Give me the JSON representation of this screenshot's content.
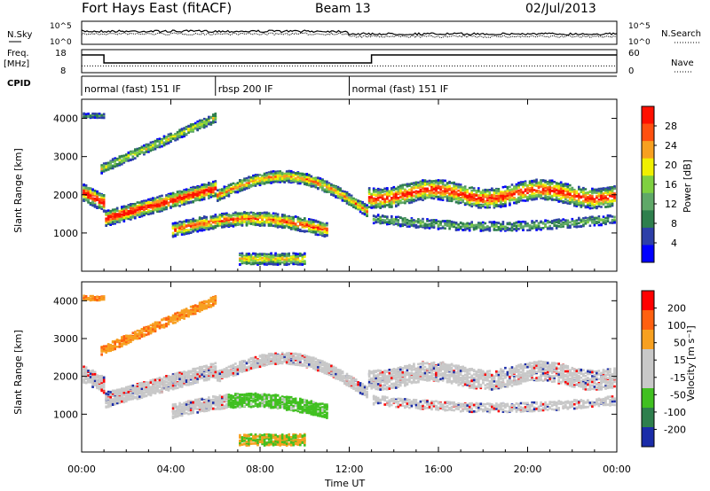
{
  "header": {
    "station": "Fort Hays East (fitACF)",
    "beam": "Beam 13",
    "date": "02/Jul/2013"
  },
  "panels": {
    "nsky_label": "N.Sky",
    "nsearch_label": "N.Search",
    "freq_label": "Freq.",
    "freq_unit": "[MHz]",
    "nave_label": "Nave",
    "cpid_label": "CPID",
    "ylabel_slant": "Slant Range [km]",
    "xlabel": "Time UT"
  },
  "chart_data": [
    {
      "type": "line",
      "name": "noise",
      "ylim_left": [
        "10^0",
        "10^5"
      ],
      "ylim_right": [
        "10^0",
        "10^5"
      ],
      "left_ticks": [
        "10^5",
        "10^0"
      ],
      "right_ticks": [
        "10^5",
        "10^0"
      ]
    },
    {
      "type": "line",
      "name": "freq-nave",
      "left_ticks": [
        "18",
        "8"
      ],
      "right_ticks": [
        "60",
        "0"
      ],
      "freq_steps": [
        {
          "start": 0.0,
          "end": 1.0,
          "value": 16.5
        },
        {
          "start": 1.0,
          "end": 13.0,
          "value": 12.0
        },
        {
          "start": 13.0,
          "end": 24.0,
          "value": 16.5
        }
      ],
      "nave_level": 14
    },
    {
      "type": "table",
      "name": "cpid",
      "segments": [
        {
          "start": 0,
          "end": 6,
          "label": "normal (fast) 151 IF"
        },
        {
          "start": 6,
          "end": 12,
          "label": "rbsp 200 IF"
        },
        {
          "start": 12,
          "end": 24,
          "label": "normal (fast) 151 IF"
        }
      ]
    },
    {
      "type": "heatmap",
      "name": "power",
      "xlabel": "Time UT",
      "ylabel": "Slant Range [km]",
      "xlim": [
        0,
        24
      ],
      "ylim": [
        0,
        4500
      ],
      "x_ticks": [
        "00:00",
        "04:00",
        "08:00",
        "12:00",
        "16:00",
        "20:00",
        "00:00"
      ],
      "y_ticks": [
        1000,
        2000,
        3000,
        4000
      ],
      "colorbar_label": "Power [dB]",
      "colorbar_ticks": [
        "28",
        "24",
        "20",
        "16",
        "12",
        "8",
        "4"
      ],
      "colorbar_colors": [
        "#0000ff",
        "#2d3fa8",
        "#2e7f4d",
        "#5fa868",
        "#7fd040",
        "#f0f000",
        "#f7a020",
        "#ff5010",
        "#ff1000"
      ]
    },
    {
      "type": "heatmap",
      "name": "velocity",
      "xlabel": "Time UT",
      "ylabel": "Slant Range [km]",
      "xlim": [
        0,
        24
      ],
      "ylim": [
        0,
        4500
      ],
      "x_ticks": [
        "00:00",
        "04:00",
        "08:00",
        "12:00",
        "16:00",
        "20:00",
        "00:00"
      ],
      "y_ticks": [
        1000,
        2000,
        3000,
        4000
      ],
      "colorbar_label": "Velocity [m s⁻¹]",
      "colorbar_ticks": [
        "200",
        "100",
        "50",
        "15",
        "-15",
        "-50",
        "-100",
        "-200"
      ],
      "colorbar_colors": [
        "#1a2ca8",
        "#2e7f4d",
        "#40c020",
        "#c8c8c8",
        "#c8c8c8",
        "#f7a020",
        "#ff6010",
        "#ff0000"
      ]
    }
  ]
}
